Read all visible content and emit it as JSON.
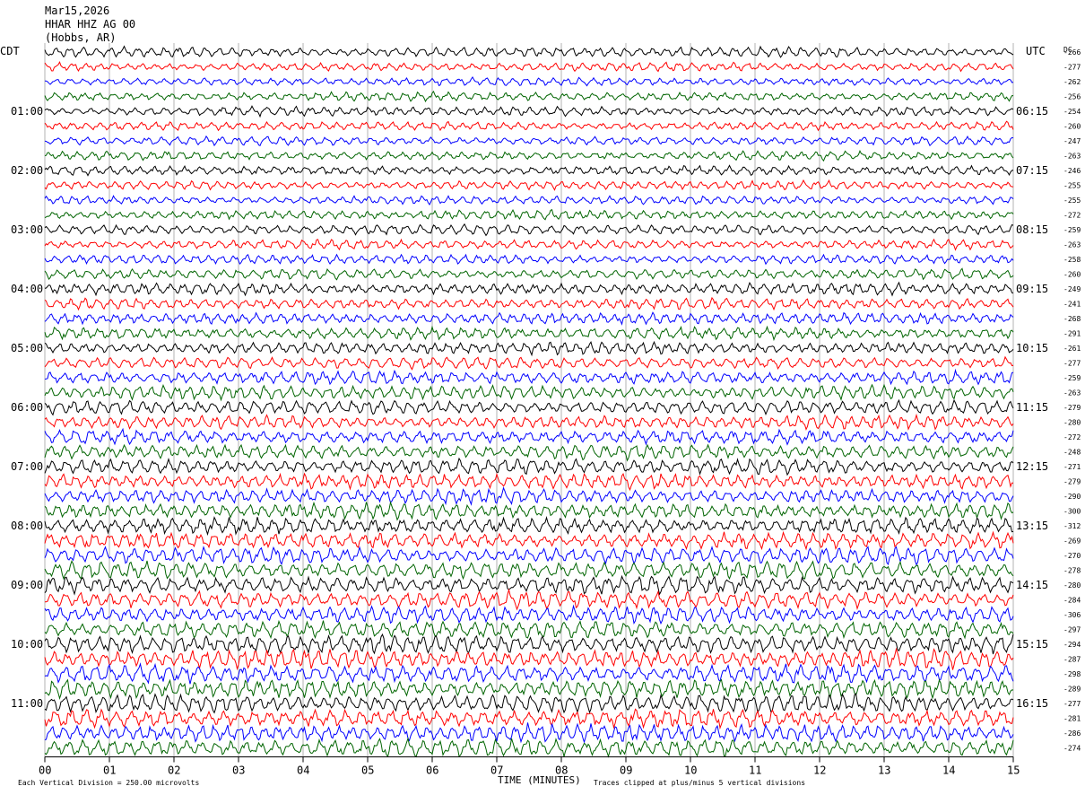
{
  "header": {
    "date": "Mar15,2026",
    "station": "HHAR HHZ AG 00",
    "location": "(Hobbs, AR)"
  },
  "left_zone": "CDT",
  "right_zone": "UTC",
  "dc_header": "DC",
  "footer": {
    "division": "Each Vertical Division =  250.00 microvolts",
    "clip": "Traces clipped at plus/minus 5 vertical divisions",
    "xlabel": "TIME (MINUTES)"
  },
  "colors": {
    "trace_cycle": [
      "#000000",
      "#ff0000",
      "#0000ff",
      "#006400"
    ],
    "grid": "#808080"
  },
  "chart_data": {
    "type": "line",
    "xlabel": "TIME (MINUTES)",
    "xlim": [
      0,
      15
    ],
    "x_ticks": [
      "00",
      "01",
      "02",
      "03",
      "04",
      "05",
      "06",
      "07",
      "08",
      "09",
      "10",
      "11",
      "12",
      "13",
      "14",
      "15"
    ],
    "trace_count": 48,
    "left_hour_labels": [
      {
        "row": 4,
        "label": "01:00"
      },
      {
        "row": 8,
        "label": "02:00"
      },
      {
        "row": 12,
        "label": "03:00"
      },
      {
        "row": 16,
        "label": "04:00"
      },
      {
        "row": 20,
        "label": "05:00"
      },
      {
        "row": 24,
        "label": "06:00"
      },
      {
        "row": 28,
        "label": "07:00"
      },
      {
        "row": 32,
        "label": "08:00"
      },
      {
        "row": 36,
        "label": "09:00"
      },
      {
        "row": 40,
        "label": "10:00"
      },
      {
        "row": 44,
        "label": "11:00"
      }
    ],
    "right_hour_labels": [
      {
        "row": 4,
        "label": "06:15"
      },
      {
        "row": 8,
        "label": "07:15"
      },
      {
        "row": 12,
        "label": "08:15"
      },
      {
        "row": 16,
        "label": "09:15"
      },
      {
        "row": 20,
        "label": "10:15"
      },
      {
        "row": 24,
        "label": "11:15"
      },
      {
        "row": 28,
        "label": "12:15"
      },
      {
        "row": 32,
        "label": "13:15"
      },
      {
        "row": 36,
        "label": "14:15"
      },
      {
        "row": 40,
        "label": "15:15"
      },
      {
        "row": 44,
        "label": "16:15"
      }
    ],
    "dc_offsets": [
      -266,
      -277,
      -262,
      -256,
      -254,
      -260,
      -247,
      -263,
      -246,
      -255,
      -255,
      -272,
      -259,
      -263,
      -258,
      -260,
      -249,
      -241,
      -268,
      -291,
      -261,
      -277,
      -259,
      -263,
      -279,
      -280,
      -272,
      -248,
      -271,
      -279,
      -290,
      -300,
      -312,
      -269,
      -270,
      -278,
      -280,
      -284,
      -306,
      -297,
      -294,
      -287,
      -298,
      -289,
      -277,
      -281,
      -286,
      -274
    ],
    "activity_level": [
      0.45,
      0.35,
      0.3,
      0.35,
      0.4,
      0.35,
      0.35,
      0.35,
      0.4,
      0.35,
      0.35,
      0.4,
      0.45,
      0.4,
      0.4,
      0.45,
      0.55,
      0.5,
      0.55,
      0.6,
      0.6,
      0.6,
      0.65,
      0.7,
      0.7,
      0.65,
      0.7,
      0.75,
      0.8,
      0.8,
      0.75,
      0.8,
      0.85,
      0.85,
      0.9,
      0.95,
      0.95,
      0.95,
      0.9,
      0.95,
      1.0,
      1.0,
      1.0,
      1.0,
      1.0,
      1.0,
      1.0,
      1.0
    ]
  }
}
